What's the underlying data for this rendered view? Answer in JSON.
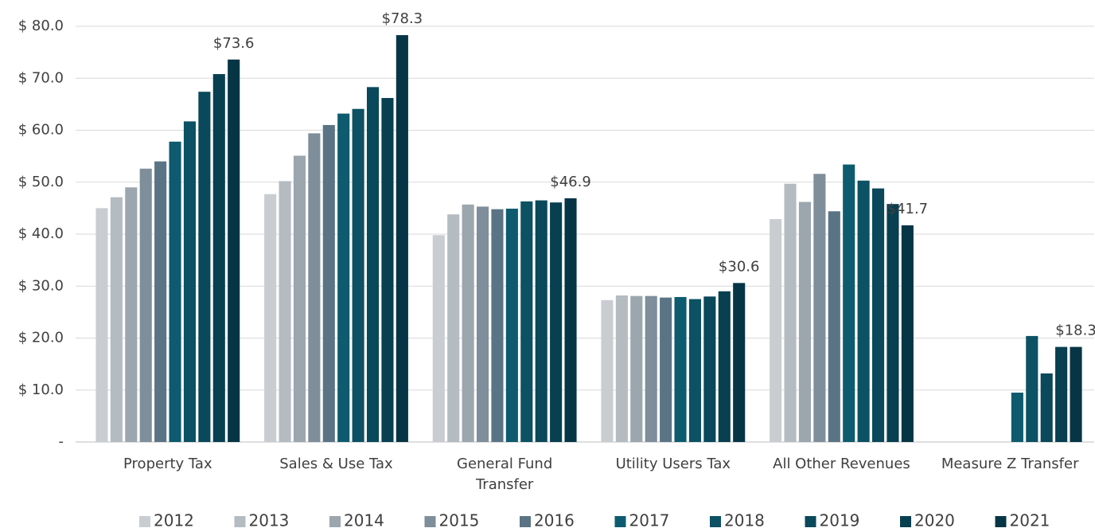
{
  "chart_data": {
    "type": "bar",
    "categories": [
      "Property Tax",
      "Sales & Use Tax",
      "General Fund Transfer",
      "Utility Users Tax",
      "All Other Revenues",
      "Measure Z Transfer"
    ],
    "series": [
      {
        "name": "2012",
        "color": "#c9cdd1",
        "values": [
          45.0,
          47.7,
          39.8,
          27.3,
          42.9,
          null
        ]
      },
      {
        "name": "2013",
        "color": "#b4bbc1",
        "values": [
          47.1,
          50.2,
          43.8,
          28.2,
          49.7,
          null
        ]
      },
      {
        "name": "2014",
        "color": "#9ba6af",
        "values": [
          49.0,
          55.1,
          45.7,
          28.1,
          46.2,
          null
        ]
      },
      {
        "name": "2015",
        "color": "#7e8e9a",
        "values": [
          52.6,
          59.4,
          45.3,
          28.1,
          51.6,
          null
        ]
      },
      {
        "name": "2016",
        "color": "#5b7485",
        "values": [
          54.0,
          61.0,
          44.8,
          27.8,
          44.4,
          null
        ]
      },
      {
        "name": "2017",
        "color": "#0e5b6f",
        "values": [
          57.8,
          63.2,
          44.9,
          27.9,
          53.4,
          9.5
        ]
      },
      {
        "name": "2018",
        "color": "#0c5164",
        "values": [
          61.7,
          64.1,
          46.3,
          27.5,
          50.3,
          20.4
        ]
      },
      {
        "name": "2019",
        "color": "#0a485b",
        "values": [
          67.4,
          68.3,
          46.5,
          28.0,
          48.8,
          13.2
        ]
      },
      {
        "name": "2020",
        "color": "#083f51",
        "values": [
          70.8,
          66.2,
          46.1,
          29.0,
          45.8,
          18.3
        ]
      },
      {
        "name": "2021",
        "color": "#063545",
        "values": [
          73.6,
          78.3,
          46.9,
          30.6,
          41.7,
          18.3
        ],
        "value_labels": [
          "$73.6",
          "$78.3",
          "$46.9",
          "$30.6",
          "$41.7",
          "$18.3"
        ]
      }
    ],
    "ylim": [
      0,
      80
    ],
    "yticks": [
      {
        "value": 0,
        "label": "-"
      },
      {
        "value": 10,
        "label": "$ 10.0"
      },
      {
        "value": 20,
        "label": "$ 20.0"
      },
      {
        "value": 30,
        "label": "$ 30.0"
      },
      {
        "value": 40,
        "label": "$ 40.0"
      },
      {
        "value": 50,
        "label": "$ 50.0"
      },
      {
        "value": 60,
        "label": "$ 60.0"
      },
      {
        "value": 70,
        "label": "$ 70.0"
      },
      {
        "value": 80,
        "label": "$ 80.0"
      }
    ],
    "grid": true,
    "legend": "bottom"
  }
}
